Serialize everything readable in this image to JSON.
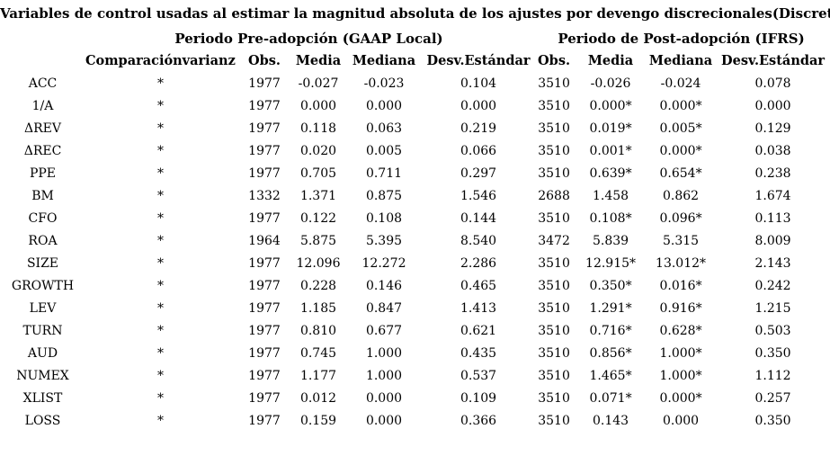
{
  "title": "Variables de control usadas al estimar la magnitud absoluta de los ajustes por devengo discrecionales(Discretionary Accruals)",
  "sections": {
    "pre": "Periodo Pre-adopción (GAAP Local)",
    "post": "Periodo de Post-adopción (IFRS)"
  },
  "columns": {
    "comparison": "Comparaciónvarianza",
    "stats": [
      "Obs.",
      "Media",
      "Mediana",
      "Desv.Estándar"
    ]
  },
  "rows": [
    {
      "variable": "ACC",
      "comparison": "*",
      "pre": [
        "1977",
        "-0.027",
        "-0.023",
        "0.104"
      ],
      "post": [
        "3510",
        "-0.026",
        "-0.024",
        "0.078"
      ]
    },
    {
      "variable": "1/A",
      "comparison": "*",
      "pre": [
        "1977",
        "0.000",
        "0.000",
        "0.000"
      ],
      "post": [
        "3510",
        "0.000*",
        "0.000*",
        "0.000"
      ]
    },
    {
      "variable": "ΔREV",
      "comparison": "*",
      "pre": [
        "1977",
        "0.118",
        "0.063",
        "0.219"
      ],
      "post": [
        "3510",
        "0.019*",
        "0.005*",
        "0.129"
      ]
    },
    {
      "variable": "ΔREC",
      "comparison": "*",
      "pre": [
        "1977",
        "0.020",
        "0.005",
        "0.066"
      ],
      "post": [
        "3510",
        "0.001*",
        "0.000*",
        "0.038"
      ]
    },
    {
      "variable": "PPE",
      "comparison": "*",
      "pre": [
        "1977",
        "0.705",
        "0.711",
        "0.297"
      ],
      "post": [
        "3510",
        "0.639*",
        "0.654*",
        "0.238"
      ]
    },
    {
      "variable": "BM",
      "comparison": "*",
      "pre": [
        "1332",
        "1.371",
        "0.875",
        "1.546"
      ],
      "post": [
        "2688",
        "1.458",
        "0.862",
        "1.674"
      ]
    },
    {
      "variable": "CFO",
      "comparison": "*",
      "pre": [
        "1977",
        "0.122",
        "0.108",
        "0.144"
      ],
      "post": [
        "3510",
        "0.108*",
        "0.096*",
        "0.113"
      ]
    },
    {
      "variable": "ROA",
      "comparison": "*",
      "pre": [
        "1964",
        "5.875",
        "5.395",
        "8.540"
      ],
      "post": [
        "3472",
        "5.839",
        "5.315",
        "8.009"
      ]
    },
    {
      "variable": "SIZE",
      "comparison": "*",
      "pre": [
        "1977",
        "12.096",
        "12.272",
        "2.286"
      ],
      "post": [
        "3510",
        "12.915*",
        "13.012*",
        "2.143"
      ]
    },
    {
      "variable": "GROWTH",
      "comparison": "*",
      "pre": [
        "1977",
        "0.228",
        "0.146",
        "0.465"
      ],
      "post": [
        "3510",
        "0.350*",
        "0.016*",
        "0.242"
      ]
    },
    {
      "variable": "LEV",
      "comparison": "*",
      "pre": [
        "1977",
        "1.185",
        "0.847",
        "1.413"
      ],
      "post": [
        "3510",
        "1.291*",
        "0.916*",
        "1.215"
      ]
    },
    {
      "variable": "TURN",
      "comparison": "*",
      "pre": [
        "1977",
        "0.810",
        "0.677",
        "0.621"
      ],
      "post": [
        "3510",
        "0.716*",
        "0.628*",
        "0.503"
      ]
    },
    {
      "variable": "AUD",
      "comparison": "*",
      "pre": [
        "1977",
        "0.745",
        "1.000",
        "0.435"
      ],
      "post": [
        "3510",
        "0.856*",
        "1.000*",
        "0.350"
      ]
    },
    {
      "variable": "NUMEX",
      "comparison": "*",
      "pre": [
        "1977",
        "1.177",
        "1.000",
        "0.537"
      ],
      "post": [
        "3510",
        "1.465*",
        "1.000*",
        "1.112"
      ]
    },
    {
      "variable": "XLIST",
      "comparison": "*",
      "pre": [
        "1977",
        "0.012",
        "0.000",
        "0.109"
      ],
      "post": [
        "3510",
        "0.071*",
        "0.000*",
        "0.257"
      ]
    },
    {
      "variable": "LOSS",
      "comparison": "*",
      "pre": [
        "1977",
        "0.159",
        "0.000",
        "0.366"
      ],
      "post": [
        "3510",
        "0.143",
        "0.000",
        "0.350"
      ]
    }
  ],
  "colors": {
    "text": "#000000",
    "background": "#ffffff"
  }
}
